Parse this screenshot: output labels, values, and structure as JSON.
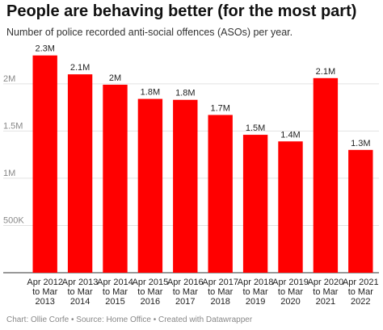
{
  "header": {
    "title": "People are behaving better (for the most part)",
    "subtitle": "Number of police recorded anti-social offences (ASOs) per year."
  },
  "footer": {
    "credit": "Chart: Ollie Corfe • Source: Home Office • Created with Datawrapper"
  },
  "chart_data": {
    "type": "bar",
    "categories": [
      [
        "Apr 2012",
        "to Mar",
        "2013"
      ],
      [
        "Apr 2013",
        "to Mar",
        "2014"
      ],
      [
        "Apr 2014",
        "to Mar",
        "2015"
      ],
      [
        "Apr 2015",
        "to Mar",
        "2016"
      ],
      [
        "Apr 2016",
        "to Mar",
        "2017"
      ],
      [
        "Apr 2017",
        "to Mar",
        "2018"
      ],
      [
        "Apr 2018",
        "to Mar",
        "2019"
      ],
      [
        "Apr 2019",
        "to Mar",
        "2020"
      ],
      [
        "Apr 2020",
        "to Mar",
        "2021"
      ],
      [
        "Apr 2021",
        "to Mar",
        "2022"
      ]
    ],
    "values": [
      2300000,
      2100000,
      1990000,
      1840000,
      1830000,
      1670000,
      1460000,
      1390000,
      2060000,
      1300000
    ],
    "data_labels": [
      "2.3M",
      "2.1M",
      "2M",
      "1.8M",
      "1.8M",
      "1.7M",
      "1.5M",
      "1.4M",
      "2.1M",
      "1.3M"
    ],
    "yticks": [
      {
        "value": 500000,
        "label": "500K"
      },
      {
        "value": 1000000,
        "label": "1M"
      },
      {
        "value": 1500000,
        "label": "1.5M"
      },
      {
        "value": 2000000,
        "label": "2M"
      }
    ],
    "ylim": [
      0,
      2400000
    ],
    "bar_color": "#ff0000",
    "grid": true
  }
}
